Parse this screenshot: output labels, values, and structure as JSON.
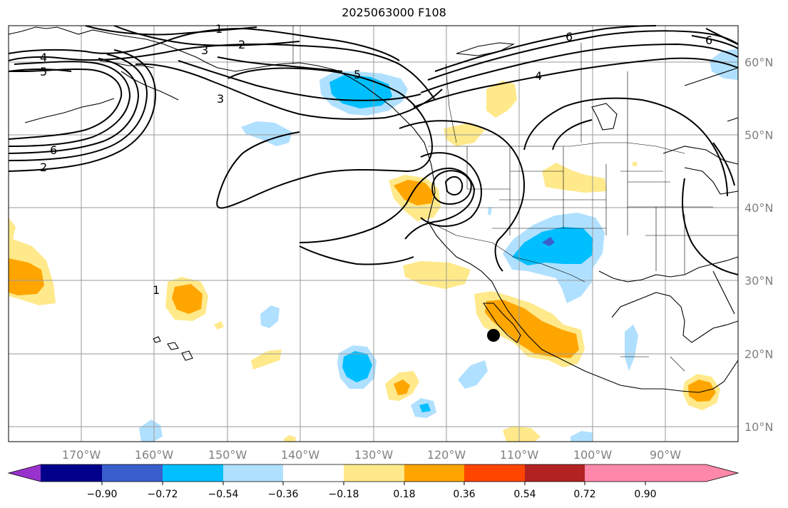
{
  "title": "2025063000 F108",
  "map": {
    "lon_labels": [
      "170°W",
      "160°W",
      "150°W",
      "140°W",
      "130°W",
      "120°W",
      "110°W",
      "100°W",
      "90°W"
    ],
    "lat_labels": [
      "60°N",
      "50°N",
      "40°N",
      "30°N",
      "20°N",
      "10°N"
    ],
    "contour_labels": [
      "1",
      "2",
      "3",
      "4",
      "5",
      "6",
      "3",
      "5",
      "4",
      "6",
      "6",
      "2",
      "1"
    ],
    "colors": {
      "neg_strong": "#00bfff",
      "neg_light": "#b0e0ff",
      "neg_deep": "#3a5fcd",
      "pos_light": "#ffe98a",
      "pos_mid": "#ffa500"
    }
  },
  "colorbar": {
    "ticks": [
      "−0.90",
      "−0.72",
      "−0.54",
      "−0.36",
      "−0.18",
      "0.18",
      "0.36",
      "0.54",
      "0.72",
      "0.90"
    ],
    "colors": [
      "#9932cc",
      "#00008b",
      "#3a5fcd",
      "#00bfff",
      "#b0e0ff",
      "#ffffff",
      "#ffe98a",
      "#ffa500",
      "#ff4500",
      "#b22222",
      "#ff88aa"
    ]
  }
}
